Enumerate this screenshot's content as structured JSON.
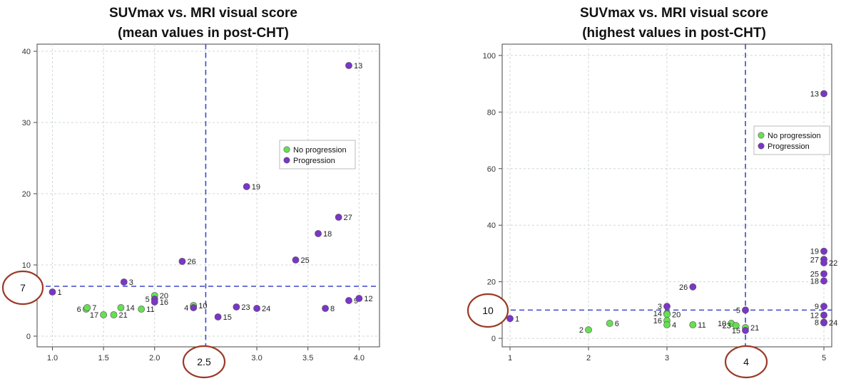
{
  "chart_data": [
    {
      "type": "scatter",
      "title_lines": [
        "SUVmax vs. MRI visual score",
        "(mean values in post-CHT)"
      ],
      "xlim": [
        0.85,
        4.2
      ],
      "ylim": [
        -1.5,
        41
      ],
      "xticks": [
        "1.0",
        "1.5",
        "2.0",
        "2.5",
        "3.0",
        "3.5",
        "4.0"
      ],
      "yticks": [
        "0",
        "10",
        "20",
        "30",
        "40"
      ],
      "grid": true,
      "threshold_x": 2.5,
      "threshold_y": 7,
      "annotations": [
        {
          "axis": "x",
          "text": "2.5",
          "value": 2.5
        },
        {
          "axis": "y",
          "text": "7",
          "value": 7
        }
      ],
      "legend": {
        "position": "center-right",
        "entries": [
          "No progression",
          "Progression"
        ]
      },
      "series": [
        {
          "name": "No progression",
          "color": "#66e052",
          "points": [
            {
              "id": "6",
              "x": 1.33,
              "y": 3.8
            },
            {
              "id": "7",
              "x": 1.34,
              "y": 4.0
            },
            {
              "id": "17",
              "x": 1.5,
              "y": 3.0
            },
            {
              "id": "21",
              "x": 1.6,
              "y": 3.0
            },
            {
              "id": "14",
              "x": 1.67,
              "y": 4.0
            },
            {
              "id": "11",
              "x": 1.87,
              "y": 3.8
            },
            {
              "id": "20",
              "x": 2.0,
              "y": 5.7
            },
            {
              "id": "10",
              "x": 2.38,
              "y": 4.3
            }
          ]
        },
        {
          "name": "Progression",
          "color": "#7b35c8",
          "points": [
            {
              "id": "1",
              "x": 1.0,
              "y": 6.2
            },
            {
              "id": "3",
              "x": 1.7,
              "y": 7.6
            },
            {
              "id": "5",
              "x": 2.0,
              "y": 5.2
            },
            {
              "id": "16",
              "x": 2.0,
              "y": 4.8
            },
            {
              "id": "4",
              "x": 2.38,
              "y": 4.0
            },
            {
              "id": "26",
              "x": 2.27,
              "y": 10.5
            },
            {
              "id": "15",
              "x": 2.62,
              "y": 2.7
            },
            {
              "id": "23",
              "x": 2.8,
              "y": 4.1
            },
            {
              "id": "24",
              "x": 3.0,
              "y": 3.9
            },
            {
              "id": "19",
              "x": 2.9,
              "y": 21.0
            },
            {
              "id": "25",
              "x": 3.38,
              "y": 10.7
            },
            {
              "id": "18",
              "x": 3.6,
              "y": 14.4
            },
            {
              "id": "27",
              "x": 3.8,
              "y": 16.7
            },
            {
              "id": "8",
              "x": 3.67,
              "y": 3.9
            },
            {
              "id": "9",
              "x": 3.9,
              "y": 5.0
            },
            {
              "id": "12",
              "x": 4.0,
              "y": 5.3
            },
            {
              "id": "13",
              "x": 3.9,
              "y": 38.0
            }
          ]
        }
      ]
    },
    {
      "type": "scatter",
      "title_lines": [
        "SUVmax vs. MRI visual score",
        "(highest values in post-CHT)"
      ],
      "xlim": [
        0.9,
        5.1
      ],
      "ylim": [
        -3,
        104
      ],
      "xticks": [
        "1",
        "2",
        "3",
        "4",
        "5"
      ],
      "yticks": [
        "0",
        "20",
        "40",
        "60",
        "80",
        "100"
      ],
      "grid": true,
      "threshold_x": 4,
      "threshold_y": 10,
      "annotations": [
        {
          "axis": "x",
          "text": "4",
          "value": 4
        },
        {
          "axis": "y",
          "text": "10",
          "value": 10
        }
      ],
      "legend": {
        "position": "upper-right",
        "entries": [
          "No progression",
          "Progression"
        ]
      },
      "series": [
        {
          "name": "No progression",
          "color": "#66e052",
          "points": [
            {
              "id": "2",
              "x": 2.0,
              "y": 3.0
            },
            {
              "id": "6",
              "x": 2.27,
              "y": 5.3
            },
            {
              "id": "14",
              "x": 3.0,
              "y": 8.8
            },
            {
              "id": "20",
              "x": 3.0,
              "y": 8.5
            },
            {
              "id": "16",
              "x": 3.0,
              "y": 6.3
            },
            {
              "id": "4",
              "x": 3.0,
              "y": 4.8
            },
            {
              "id": "11",
              "x": 3.33,
              "y": 4.8
            },
            {
              "id": "10",
              "x": 3.82,
              "y": 5.3
            },
            {
              "id": "23",
              "x": 3.88,
              "y": 4.5
            },
            {
              "id": "21",
              "x": 4.0,
              "y": 3.8
            }
          ]
        },
        {
          "name": "Progression",
          "color": "#7b35c8",
          "points": [
            {
              "id": "1",
              "x": 1.0,
              "y": 7.0
            },
            {
              "id": "3",
              "x": 3.0,
              "y": 11.3
            },
            {
              "id": "26",
              "x": 3.33,
              "y": 18.2
            },
            {
              "id": "5",
              "x": 4.0,
              "y": 10.0
            },
            {
              "id": "15",
              "x": 4.0,
              "y": 2.8
            },
            {
              "id": "13",
              "x": 5.0,
              "y": 86.5
            },
            {
              "id": "19",
              "x": 5.0,
              "y": 30.8
            },
            {
              "id": "27",
              "x": 5.0,
              "y": 27.9
            },
            {
              "id": "22",
              "x": 5.0,
              "y": 26.7
            },
            {
              "id": "25",
              "x": 5.0,
              "y": 22.8
            },
            {
              "id": "18",
              "x": 5.0,
              "y": 20.3
            },
            {
              "id": "9",
              "x": 5.0,
              "y": 11.3
            },
            {
              "id": "12",
              "x": 5.0,
              "y": 8.2
            },
            {
              "id": "8",
              "x": 5.0,
              "y": 5.7
            },
            {
              "id": "24",
              "x": 5.0,
              "y": 5.5
            }
          ]
        }
      ]
    }
  ]
}
